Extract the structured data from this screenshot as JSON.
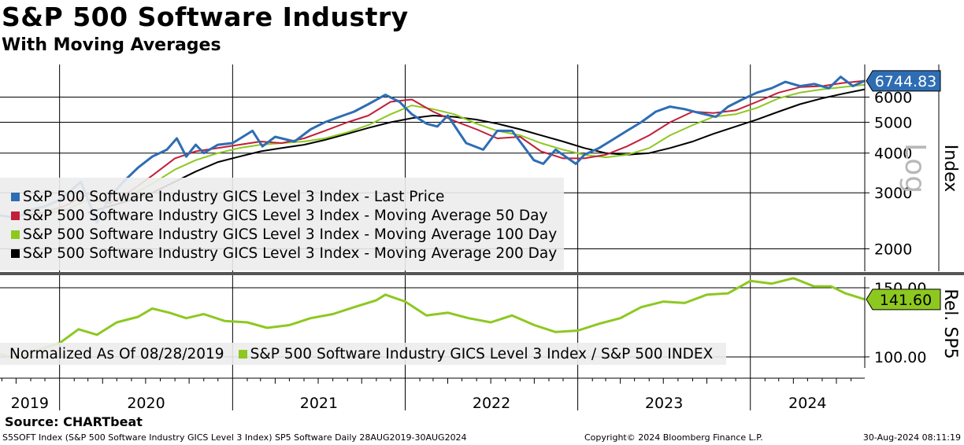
{
  "title": "S&P 500 Software Industry",
  "subtitle": "With Moving Averages",
  "source": "Source: CHARTbeat",
  "footer": {
    "left": "S5SOFT Index (S&P 500 Software Industry GICS Level 3 Index) SP5 Software  Daily 28AUG2019-30AUG2024",
    "middle": "Copyright© 2024 Bloomberg Finance L.P.",
    "right": "30-Aug-2024 08:11:19"
  },
  "colors": {
    "last_price": "#2e6db4",
    "ma50": "#c0203a",
    "ma100": "#8dc820",
    "ma200": "#000000",
    "relative": "#8dc820"
  },
  "chart_data": [
    {
      "type": "line",
      "title": "",
      "ylabel": "Index",
      "scale_label": "Log",
      "yscale": "log",
      "ylim": [
        1700,
        7600
      ],
      "yticks": [
        2000,
        3000,
        4000,
        5000,
        6000
      ],
      "ytick_labels": [
        "2000",
        "3000",
        "4000",
        "5000",
        "6000"
      ],
      "xticks": [
        "2019",
        "2020",
        "2021",
        "2022",
        "2023",
        "2024"
      ],
      "xlim": [
        "2019-08-28",
        "2024-08-30"
      ],
      "last_value_label": "6744.83",
      "grid": true,
      "legend": "bottom-left",
      "series": [
        {
          "name": "S&P 500 Software Industry GICS Level 3 Index - Last Price",
          "x": [
            "2019-08-28",
            "2019-10-01",
            "2019-11-01",
            "2019-12-01",
            "2020-01-02",
            "2020-02-15",
            "2020-03-20",
            "2020-04-15",
            "2020-05-15",
            "2020-06-15",
            "2020-07-15",
            "2020-08-15",
            "2020-09-05",
            "2020-09-25",
            "2020-10-15",
            "2020-11-01",
            "2020-12-01",
            "2021-01-01",
            "2021-02-12",
            "2021-03-05",
            "2021-04-01",
            "2021-05-12",
            "2021-06-15",
            "2021-07-15",
            "2021-08-15",
            "2021-09-15",
            "2021-10-15",
            "2021-11-20",
            "2021-12-20",
            "2022-01-15",
            "2022-02-15",
            "2022-03-10",
            "2022-04-01",
            "2022-05-10",
            "2022-06-15",
            "2022-07-15",
            "2022-08-15",
            "2022-09-30",
            "2022-10-20",
            "2022-11-15",
            "2022-12-28",
            "2023-01-15",
            "2023-02-15",
            "2023-03-15",
            "2023-04-15",
            "2023-05-15",
            "2023-06-15",
            "2023-07-15",
            "2023-08-15",
            "2023-09-15",
            "2023-10-20",
            "2023-11-15",
            "2023-12-15",
            "2024-01-15",
            "2024-02-15",
            "2024-03-15",
            "2024-04-15",
            "2024-05-15",
            "2024-06-15",
            "2024-07-10",
            "2024-08-05",
            "2024-08-30"
          ],
          "values": [
            2550,
            2500,
            2650,
            2720,
            2850,
            3250,
            2420,
            2900,
            3250,
            3600,
            3900,
            4100,
            4450,
            3900,
            4250,
            4000,
            4250,
            4300,
            4700,
            4200,
            4500,
            4350,
            4750,
            5000,
            5200,
            5400,
            5700,
            6100,
            5800,
            5300,
            4950,
            4850,
            5250,
            4300,
            4100,
            4700,
            4700,
            3800,
            3700,
            4100,
            3700,
            3950,
            4150,
            4400,
            4700,
            5000,
            5400,
            5600,
            5500,
            5350,
            5200,
            5600,
            5900,
            6200,
            6400,
            6700,
            6500,
            6600,
            6400,
            6950,
            6500,
            6750
          ]
        },
        {
          "name": "S&P 500 Software Industry GICS Level 3 Index - Moving Average 50 Day",
          "x": [
            "2019-10-15",
            "2019-12-01",
            "2020-01-15",
            "2020-03-01",
            "2020-04-15",
            "2020-06-01",
            "2020-07-15",
            "2020-09-01",
            "2020-10-15",
            "2020-12-01",
            "2021-01-15",
            "2021-03-01",
            "2021-04-15",
            "2021-06-01",
            "2021-07-15",
            "2021-09-01",
            "2021-10-15",
            "2021-12-01",
            "2022-01-15",
            "2022-03-01",
            "2022-04-15",
            "2022-06-01",
            "2022-07-15",
            "2022-09-01",
            "2022-10-15",
            "2022-12-01",
            "2023-01-15",
            "2023-03-01",
            "2023-04-15",
            "2023-06-01",
            "2023-07-15",
            "2023-09-01",
            "2023-10-15",
            "2023-12-01",
            "2024-01-15",
            "2024-03-01",
            "2024-04-15",
            "2024-06-01",
            "2024-07-15",
            "2024-08-30"
          ],
          "values": [
            2540,
            2610,
            2740,
            2980,
            2770,
            3050,
            3400,
            3850,
            4050,
            4150,
            4250,
            4350,
            4300,
            4450,
            4700,
            5000,
            5250,
            5800,
            5900,
            5400,
            5050,
            4750,
            4450,
            4500,
            4050,
            3850,
            3850,
            3950,
            4200,
            4550,
            5000,
            5400,
            5350,
            5450,
            5800,
            6200,
            6450,
            6500,
            6650,
            6750
          ]
        },
        {
          "name": "S&P 500 Software Industry GICS Level 3 Index - Moving Average 100 Day",
          "x": [
            "2019-12-01",
            "2020-01-15",
            "2020-03-01",
            "2020-04-15",
            "2020-06-01",
            "2020-07-15",
            "2020-09-01",
            "2020-10-15",
            "2020-12-01",
            "2021-01-15",
            "2021-03-01",
            "2021-04-15",
            "2021-06-01",
            "2021-07-15",
            "2021-09-01",
            "2021-10-15",
            "2021-12-01",
            "2022-01-15",
            "2022-03-01",
            "2022-04-15",
            "2022-06-01",
            "2022-07-15",
            "2022-09-01",
            "2022-10-15",
            "2022-12-01",
            "2023-01-15",
            "2023-03-01",
            "2023-04-15",
            "2023-06-01",
            "2023-07-15",
            "2023-09-01",
            "2023-10-15",
            "2023-12-01",
            "2024-01-15",
            "2024-03-01",
            "2024-04-15",
            "2024-06-01",
            "2024-07-15",
            "2024-08-30"
          ],
          "values": [
            2560,
            2660,
            2850,
            2800,
            2960,
            3200,
            3550,
            3800,
            4000,
            4150,
            4250,
            4300,
            4350,
            4450,
            4650,
            4900,
            5300,
            5650,
            5500,
            5300,
            4950,
            4700,
            4550,
            4300,
            4100,
            3950,
            3880,
            3950,
            4150,
            4550,
            4900,
            5200,
            5300,
            5550,
            5950,
            6200,
            6350,
            6450,
            6560
          ]
        },
        {
          "name": "S&P 500 Software Industry GICS Level 3 Index - Moving Average 200 Day",
          "x": [
            "2020-03-01",
            "2020-04-15",
            "2020-06-01",
            "2020-07-15",
            "2020-09-01",
            "2020-10-15",
            "2020-12-01",
            "2021-01-15",
            "2021-03-01",
            "2021-04-15",
            "2021-06-01",
            "2021-07-15",
            "2021-09-01",
            "2021-10-15",
            "2021-12-01",
            "2022-01-15",
            "2022-03-01",
            "2022-04-15",
            "2022-06-01",
            "2022-07-15",
            "2022-09-01",
            "2022-10-15",
            "2022-12-01",
            "2023-01-15",
            "2023-03-01",
            "2023-04-15",
            "2023-06-01",
            "2023-07-15",
            "2023-09-01",
            "2023-10-15",
            "2023-12-01",
            "2024-01-15",
            "2024-03-01",
            "2024-04-15",
            "2024-06-01",
            "2024-07-15",
            "2024-08-30"
          ],
          "values": [
            2600,
            2720,
            2850,
            3000,
            3250,
            3500,
            3750,
            3900,
            4050,
            4150,
            4250,
            4400,
            4600,
            4800,
            5000,
            5150,
            5250,
            5200,
            5100,
            4950,
            4750,
            4550,
            4350,
            4150,
            4000,
            3950,
            4000,
            4150,
            4350,
            4600,
            4850,
            5100,
            5400,
            5700,
            5950,
            6150,
            6350
          ]
        }
      ]
    },
    {
      "type": "line",
      "title": "",
      "ylabel": "Rel. SP5",
      "ylim": [
        92,
        158
      ],
      "yticks": [
        100,
        150
      ],
      "ytick_labels": [
        "100.00",
        "150.00"
      ],
      "last_value_label": "141.60",
      "legend": "bottom-left",
      "note": "Normalized As Of 08/28/2019",
      "series": [
        {
          "name": "S&P 500 Software Industry GICS Level 3 Index / S&P 500 INDEX",
          "x": [
            "2019-08-28",
            "2019-10-01",
            "2019-11-15",
            "2020-01-01",
            "2020-02-10",
            "2020-03-20",
            "2020-05-01",
            "2020-06-15",
            "2020-07-15",
            "2020-08-20",
            "2020-09-25",
            "2020-11-01",
            "2020-12-15",
            "2021-02-01",
            "2021-03-15",
            "2021-05-01",
            "2021-06-15",
            "2021-08-01",
            "2021-09-15",
            "2021-11-01",
            "2021-11-20",
            "2022-01-01",
            "2022-02-15",
            "2022-04-01",
            "2022-05-15",
            "2022-07-01",
            "2022-08-15",
            "2022-10-01",
            "2022-11-15",
            "2023-01-01",
            "2023-02-15",
            "2023-04-01",
            "2023-05-15",
            "2023-07-01",
            "2023-08-15",
            "2023-10-01",
            "2023-11-15",
            "2024-01-01",
            "2024-02-15",
            "2024-04-01",
            "2024-05-15",
            "2024-06-20",
            "2024-07-20",
            "2024-08-30"
          ],
          "values": [
            102,
            99,
            105,
            110,
            120,
            116,
            125,
            129,
            135,
            132,
            128,
            131,
            126,
            125,
            121,
            123,
            128,
            131,
            136,
            141,
            145,
            140,
            130,
            132,
            128,
            125,
            130,
            123,
            118,
            119,
            124,
            128,
            136,
            140,
            139,
            145,
            146,
            155,
            153,
            157,
            151,
            151,
            146,
            141.6
          ]
        }
      ]
    }
  ]
}
